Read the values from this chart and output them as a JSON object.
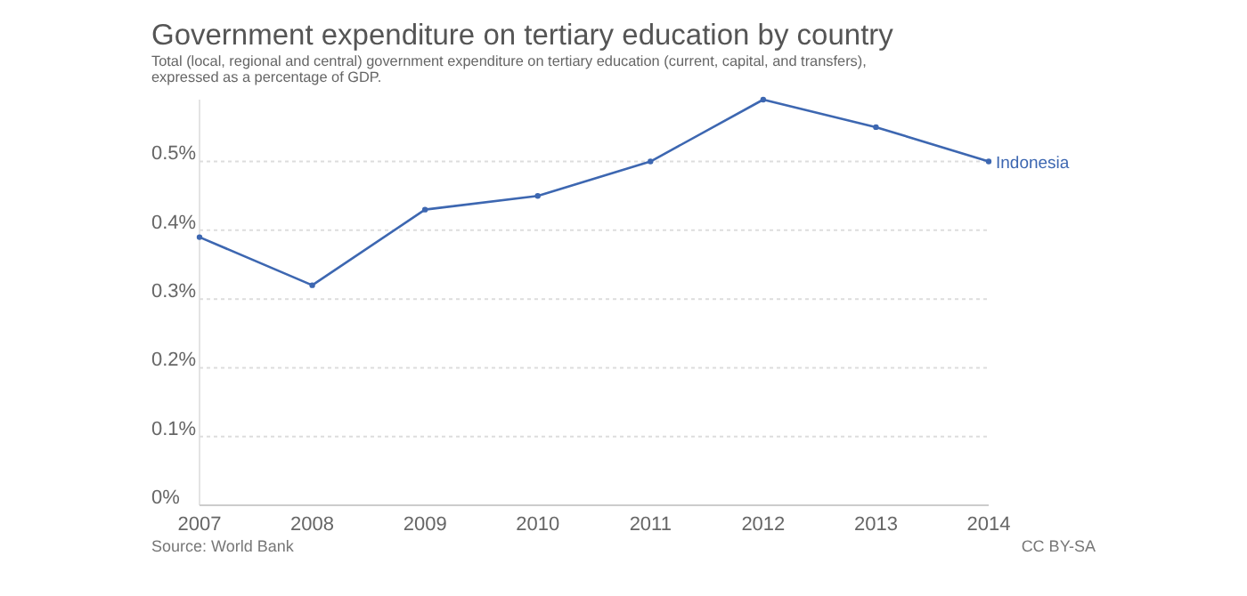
{
  "chart_data": {
    "type": "line",
    "title": "Government expenditure on tertiary education by country",
    "subtitle": "Total (local, regional and central) government expenditure on tertiary education (current, capital, and transfers), expressed as a percentage of GDP.",
    "x": [
      2007,
      2008,
      2009,
      2010,
      2011,
      2012,
      2013,
      2014
    ],
    "series": [
      {
        "name": "Indonesia",
        "color": "#3d67b1",
        "values": [
          0.39,
          0.32,
          0.43,
          0.45,
          0.5,
          0.59,
          0.55,
          0.5
        ]
      }
    ],
    "xlim": [
      2007,
      2014
    ],
    "xticks": [
      2007,
      2008,
      2009,
      2010,
      2011,
      2012,
      2013,
      2014
    ],
    "ylim": [
      0,
      0.59
    ],
    "yticks": [
      {
        "value": 0,
        "label": "0%"
      },
      {
        "value": 0.1,
        "label": "0.1%"
      },
      {
        "value": 0.2,
        "label": "0.2%"
      },
      {
        "value": 0.3,
        "label": "0.3%"
      },
      {
        "value": 0.4,
        "label": "0.4%"
      },
      {
        "value": 0.5,
        "label": "0.5%"
      }
    ],
    "grid": "y",
    "marker": "circle",
    "line_style": "solid",
    "annotations": [
      "Source: World Bank",
      "CC BY-SA"
    ]
  }
}
